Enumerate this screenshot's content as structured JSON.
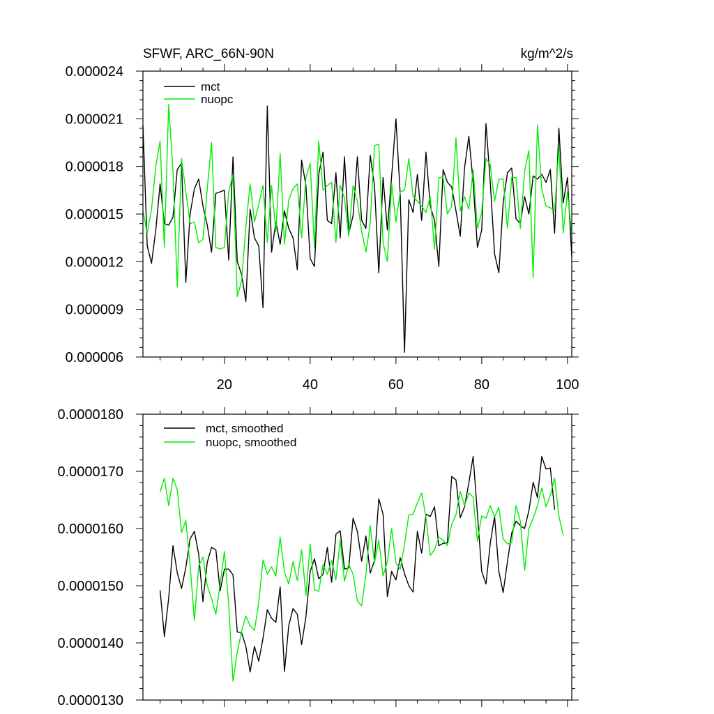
{
  "chart_data": [
    {
      "type": "line",
      "title": "SFWF, ARC_66N-90N",
      "units_label": "kg/m^2/s",
      "xlim": [
        1,
        101
      ],
      "ylim": [
        6e-06,
        2.4e-05
      ],
      "xticks": [
        20,
        40,
        60,
        80,
        100
      ],
      "yticks": [
        6e-06,
        9e-06,
        1.2e-05,
        1.5e-05,
        1.8e-05,
        2.1e-05,
        2.4e-05
      ],
      "ytick_labels": [
        "0.000006",
        "0.000009",
        "0.000012",
        "0.000015",
        "0.000018",
        "0.000021",
        "0.000024"
      ],
      "xtick_labels": [
        "20",
        "40",
        "60",
        "80",
        "100"
      ],
      "series": [
        {
          "name": "mct",
          "color": "#000000",
          "x_start": 1,
          "values": [
            2.06,
            1.3,
            1.19,
            1.4,
            1.69,
            1.44,
            1.43,
            1.48,
            1.78,
            1.82,
            1.07,
            1.5,
            1.66,
            1.72,
            1.55,
            1.43,
            1.26,
            1.63,
            1.64,
            1.65,
            1.21,
            1.86,
            1.2,
            1.12,
            0.95,
            1.53,
            1.35,
            1.3,
            0.91,
            2.18,
            1.26,
            1.45,
            1.31,
            1.52,
            1.41,
            1.35,
            1.15,
            1.84,
            1.68,
            1.22,
            1.17,
            1.75,
            1.89,
            1.46,
            1.44,
            1.76,
            1.35,
            1.86,
            1.38,
            1.49,
            1.86,
            1.46,
            1.41,
            1.87,
            1.68,
            1.13,
            1.73,
            1.4,
            1.74,
            2.1,
            1.62,
            0.63,
            1.59,
            1.51,
            1.75,
            1.46,
            1.89,
            1.55,
            1.46,
            1.17,
            1.78,
            1.7,
            1.67,
            1.52,
            1.36,
            1.79,
            1.99,
            1.7,
            1.29,
            1.4,
            2.07,
            1.7,
            1.25,
            1.13,
            1.57,
            1.76,
            1.79,
            1.47,
            1.44,
            1.61,
            1.5,
            1.74,
            1.72,
            1.75,
            1.7,
            1.78,
            1.38,
            2.04,
            1.57,
            1.73,
            1.23
          ]
        },
        {
          "name": "nuopc",
          "color": "#00ee00",
          "x_start": 1,
          "values": [
            1.52,
            1.38,
            1.53,
            1.8,
            1.96,
            1.29,
            2.19,
            1.77,
            1.04,
            1.85,
            1.64,
            1.44,
            1.45,
            1.32,
            1.34,
            1.66,
            1.95,
            1.29,
            1.28,
            1.29,
            1.64,
            1.75,
            0.98,
            1.08,
            1.42,
            1.69,
            1.45,
            1.56,
            1.68,
            1.32,
            1.68,
            1.39,
            1.88,
            1.31,
            1.59,
            1.66,
            1.69,
            1.35,
            1.73,
            1.82,
            1.29,
            1.96,
            1.65,
            1.68,
            1.7,
            1.32,
            1.68,
            1.6,
            1.36,
            1.68,
            1.58,
            1.39,
            1.26,
            1.44,
            1.93,
            1.94,
            1.32,
            1.2,
            1.69,
            1.45,
            1.64,
            1.65,
            1.85,
            1.61,
            1.58,
            1.55,
            1.51,
            1.61,
            1.28,
            1.73,
            1.73,
            1.5,
            1.55,
            1.98,
            1.52,
            1.61,
            1.53,
            1.78,
            1.41,
            1.51,
            1.85,
            1.81,
            1.58,
            1.72,
            1.72,
            1.41,
            1.73,
            1.73,
            1.41,
            1.77,
            1.9,
            1.1,
            2.06,
            1.66,
            1.55,
            1.54,
            1.52,
            1.92,
            1.38,
            1.64,
            1.37
          ]
        }
      ]
    },
    {
      "type": "line",
      "title": "",
      "xlim": [
        1,
        101
      ],
      "ylim": [
        1.3e-05,
        1.8e-05
      ],
      "xticks": [
        20,
        40,
        60,
        80,
        100
      ],
      "yticks": [
        1.3e-05,
        1.4e-05,
        1.5e-05,
        1.6e-05,
        1.7e-05,
        1.8e-05
      ],
      "ytick_labels": [
        "0.0000130",
        "0.0000140",
        "0.0000150",
        "0.0000160",
        "0.0000170",
        "0.0000180"
      ],
      "series": [
        {
          "name": "mct, smoothed",
          "color": "#000000",
          "x_start": 5,
          "values": [
            1.492,
            1.411,
            1.478,
            1.57,
            1.523,
            1.495,
            1.532,
            1.582,
            1.595,
            1.555,
            1.472,
            1.541,
            1.567,
            1.563,
            1.491,
            1.529,
            1.529,
            1.519,
            1.419,
            1.418,
            1.394,
            1.349,
            1.394,
            1.368,
            1.408,
            1.458,
            1.443,
            1.436,
            1.498,
            1.35,
            1.43,
            1.46,
            1.45,
            1.397,
            1.445,
            1.525,
            1.547,
            1.512,
            1.52,
            1.567,
            1.506,
            1.59,
            1.596,
            1.529,
            1.531,
            1.618,
            1.595,
            1.543,
            1.587,
            1.522,
            1.544,
            1.652,
            1.625,
            1.481,
            1.525,
            1.51,
            1.549,
            1.521,
            1.5,
            1.489,
            1.595,
            1.557,
            1.625,
            1.621,
            1.638,
            1.57,
            1.574,
            1.575,
            1.691,
            1.685,
            1.619,
            1.638,
            1.68,
            1.726,
            1.626,
            1.525,
            1.503,
            1.574,
            1.622,
            1.525,
            1.488,
            1.542,
            1.592,
            1.613,
            1.605,
            1.6,
            1.631,
            1.681,
            1.654,
            1.726,
            1.704,
            1.706,
            1.633
          ]
        },
        {
          "name": "nuopc, smoothed",
          "color": "#00ee00",
          "x_start": 5,
          "values": [
            1.664,
            1.688,
            1.64,
            1.688,
            1.668,
            1.593,
            1.614,
            1.536,
            1.439,
            1.534,
            1.55,
            1.5,
            1.478,
            1.45,
            1.503,
            1.56,
            1.467,
            1.333,
            1.384,
            1.42,
            1.447,
            1.43,
            1.422,
            1.47,
            1.545,
            1.52,
            1.533,
            1.517,
            1.585,
            1.524,
            1.503,
            1.542,
            1.509,
            1.563,
            1.483,
            1.573,
            1.493,
            1.49,
            1.537,
            1.52,
            1.544,
            1.51,
            1.58,
            1.508,
            1.538,
            1.52,
            1.473,
            1.465,
            1.519,
            1.605,
            1.54,
            1.58,
            1.517,
            1.542,
            1.6,
            1.54,
            1.529,
            1.572,
            1.624,
            1.625,
            1.645,
            1.662,
            1.62,
            1.553,
            1.563,
            1.585,
            1.58,
            1.57,
            1.607,
            1.624,
            1.665,
            1.64,
            1.662,
            1.655,
            1.578,
            1.622,
            1.618,
            1.64,
            1.62,
            1.637,
            1.582,
            1.573,
            1.575,
            1.64,
            1.613,
            1.527,
            1.6,
            1.618,
            1.64,
            1.671,
            1.638,
            1.658,
            1.688,
            1.622,
            1.588
          ]
        }
      ]
    }
  ]
}
